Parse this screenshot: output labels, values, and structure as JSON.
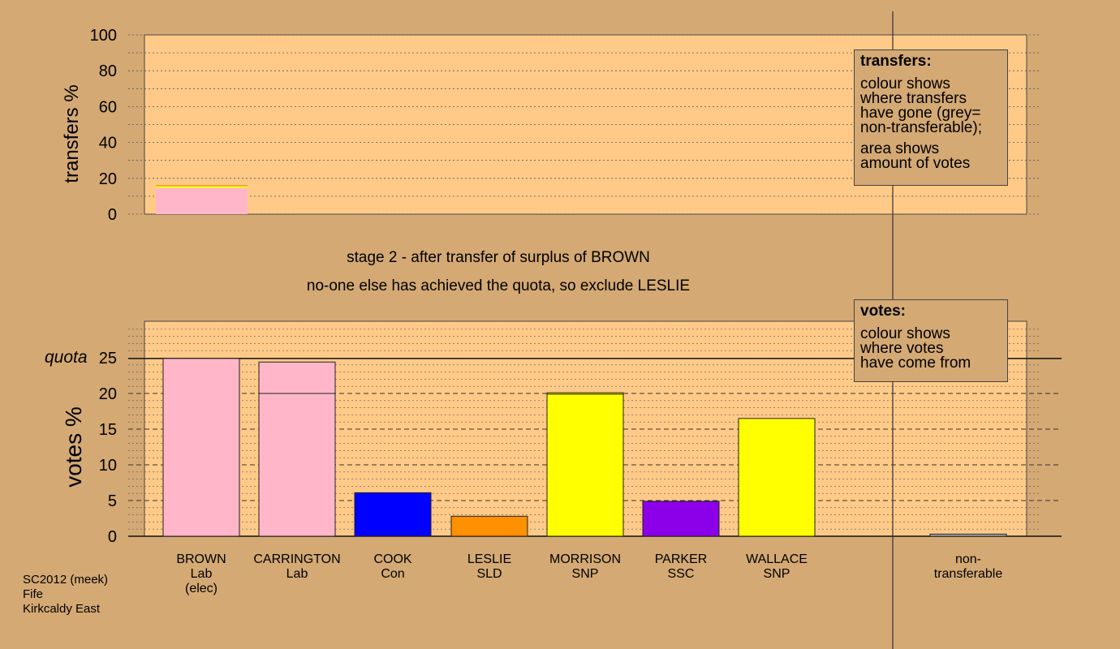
{
  "chart_data": [
    {
      "type": "bar",
      "panel": "transfers",
      "ylabel": "transfers %",
      "ylim": [
        0,
        100
      ],
      "yticks": [
        0,
        20,
        40,
        60,
        80,
        100
      ],
      "bars": [
        {
          "category": "BROWN",
          "segments": [
            {
              "colour": "#ffb6c8",
              "value": 14.6
            },
            {
              "colour": "#ffff00",
              "value": 1.0
            },
            {
              "colour": "#b0b0b0",
              "value": 0.3
            },
            {
              "colour": "#ff9000",
              "value": 0.3
            }
          ]
        }
      ]
    },
    {
      "type": "bar",
      "panel": "votes",
      "ylabel": "votes %",
      "ylim": [
        0,
        25
      ],
      "yticks": [
        0,
        5,
        10,
        15,
        20,
        25
      ],
      "quota": 24.9,
      "quota_label": "quota",
      "categories": [
        "BROWN",
        "CARRINGTON",
        "COOK",
        "LESLIE",
        "MORRISON",
        "PARKER",
        "WALLACE",
        "non-transferable"
      ],
      "bars": [
        {
          "name": "BROWN",
          "line2": "Lab",
          "line3": "(elec)",
          "colour": "#ffb6c8",
          "value": 24.9,
          "segments": [
            24.9
          ]
        },
        {
          "name": "CARRINGTON",
          "line2": "Lab",
          "line3": "",
          "colour": "#ffb6c8",
          "value": 24.4,
          "segments": [
            20.0,
            4.4
          ]
        },
        {
          "name": "COOK",
          "line2": "Con",
          "line3": "",
          "colour": "#0000ff",
          "value": 6.1,
          "segments": [
            6.1
          ]
        },
        {
          "name": "LESLIE",
          "line2": "SLD",
          "line3": "",
          "colour": "#ff9000",
          "value": 2.8,
          "segments": [
            2.8
          ]
        },
        {
          "name": "MORRISON",
          "line2": "SNP",
          "line3": "",
          "colour": "#ffff00",
          "value": 20.1,
          "segments": [
            19.9,
            0.2
          ]
        },
        {
          "name": "PARKER",
          "line2": "SSC",
          "line3": "",
          "colour": "#8b00e8",
          "value": 4.9,
          "segments": [
            4.9
          ]
        },
        {
          "name": "WALLACE",
          "line2": "SNP",
          "line3": "",
          "colour": "#ffff00",
          "value": 16.5,
          "segments": [
            16.5
          ]
        },
        {
          "name": "non-",
          "line2": "transferable",
          "line3": "",
          "colour": "#b0b0b0",
          "value": 0.3,
          "segments": [
            0.3
          ]
        }
      ]
    }
  ],
  "stage_line1": "stage 2 - after transfer of surplus of BROWN",
  "stage_line2": "no-one else has achieved the quota, so exclude LESLIE",
  "legend_transfers": {
    "title": "transfers:",
    "lines": [
      "colour shows",
      "where transfers",
      "have gone (grey=",
      "non-transferable);"
    ],
    "lines2": [
      "area shows",
      "amount of votes"
    ]
  },
  "legend_votes": {
    "title": "votes:",
    "lines": [
      "colour shows",
      "where votes",
      "have come from"
    ]
  },
  "footer": [
    "SC2012 (meek)",
    "Fife",
    "Kirkcaldy East"
  ],
  "colors": {
    "background": "#d4a974",
    "plot_background": "#ffca88"
  }
}
